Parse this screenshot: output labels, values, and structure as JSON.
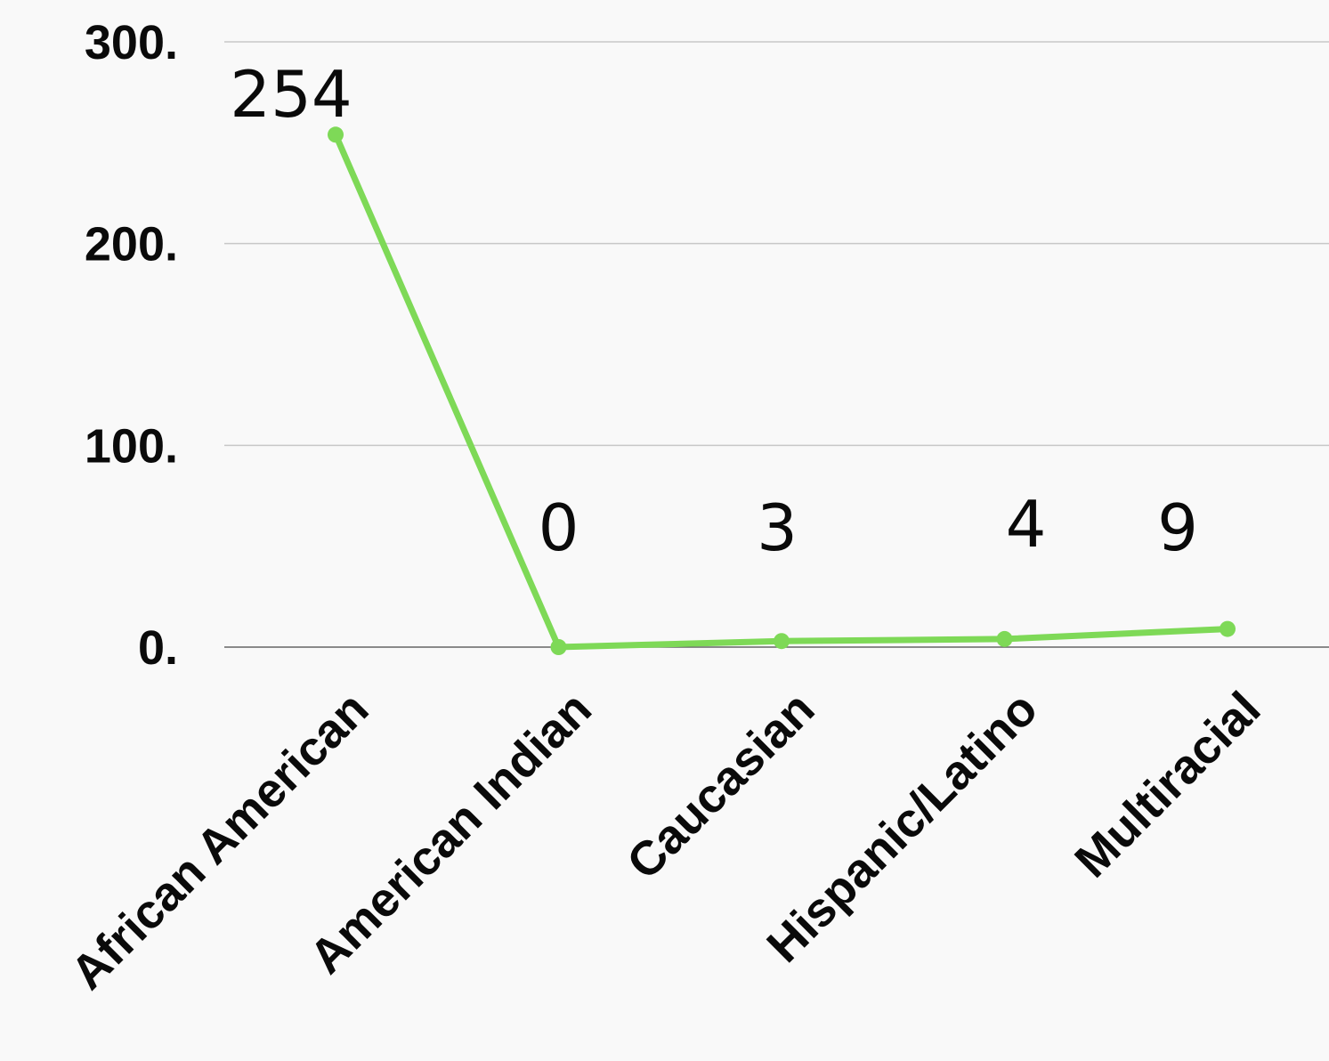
{
  "chart_data": {
    "type": "line",
    "categories": [
      "African American",
      "American Indian",
      "Caucasian",
      "Hispanic/Latino",
      "Multiracial"
    ],
    "series": [
      {
        "values": [
          254,
          0,
          3,
          4,
          9
        ],
        "color": "#7ed957"
      }
    ],
    "data_labels": [
      "254",
      "0",
      "3",
      "4",
      "9"
    ],
    "yticks": [
      0,
      100,
      200,
      300
    ],
    "ytick_labels": [
      "0.",
      "100.",
      "200.",
      "300."
    ],
    "ylim": [
      0,
      300
    ],
    "grid": true,
    "legend": "none",
    "title": "",
    "xlabel": "",
    "ylabel": ""
  }
}
